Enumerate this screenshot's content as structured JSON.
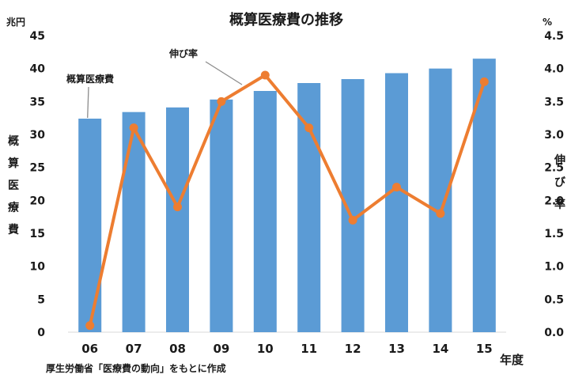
{
  "chart_data": {
    "type": "bar+line",
    "title": "概算医療費の推移",
    "categories": [
      "06",
      "07",
      "08",
      "09",
      "10",
      "11",
      "12",
      "13",
      "14",
      "15"
    ],
    "x_unit": "年度",
    "left_axis": {
      "unit": "兆円",
      "label_chars": [
        "概",
        "算",
        "医",
        "療",
        "費"
      ],
      "ylim": [
        0,
        45
      ],
      "ticks": [
        0,
        5,
        10,
        15,
        20,
        25,
        30,
        35,
        40,
        45
      ]
    },
    "right_axis": {
      "unit": "%",
      "label_chars": [
        "伸",
        "び",
        "率"
      ],
      "ylim": [
        0,
        4.5
      ],
      "ticks": [
        "0.0",
        "0.5",
        "1.0",
        "1.5",
        "2.0",
        "2.5",
        "3.0",
        "3.5",
        "4.0",
        "4.5"
      ]
    },
    "series": [
      {
        "name": "概算医療費",
        "type": "bar",
        "axis": "left",
        "color": "#5b9bd5",
        "values": [
          32.4,
          33.4,
          34.1,
          35.3,
          36.6,
          37.8,
          38.4,
          39.3,
          40.0,
          41.5
        ]
      },
      {
        "name": "伸び率",
        "type": "line",
        "axis": "right",
        "color": "#ed7d31",
        "values": [
          0.1,
          3.1,
          1.9,
          3.5,
          3.9,
          3.1,
          1.7,
          2.2,
          1.8,
          3.8
        ]
      }
    ],
    "source_note": "厚生労働省「医療費の動向」をもとに作成",
    "grid": false
  }
}
